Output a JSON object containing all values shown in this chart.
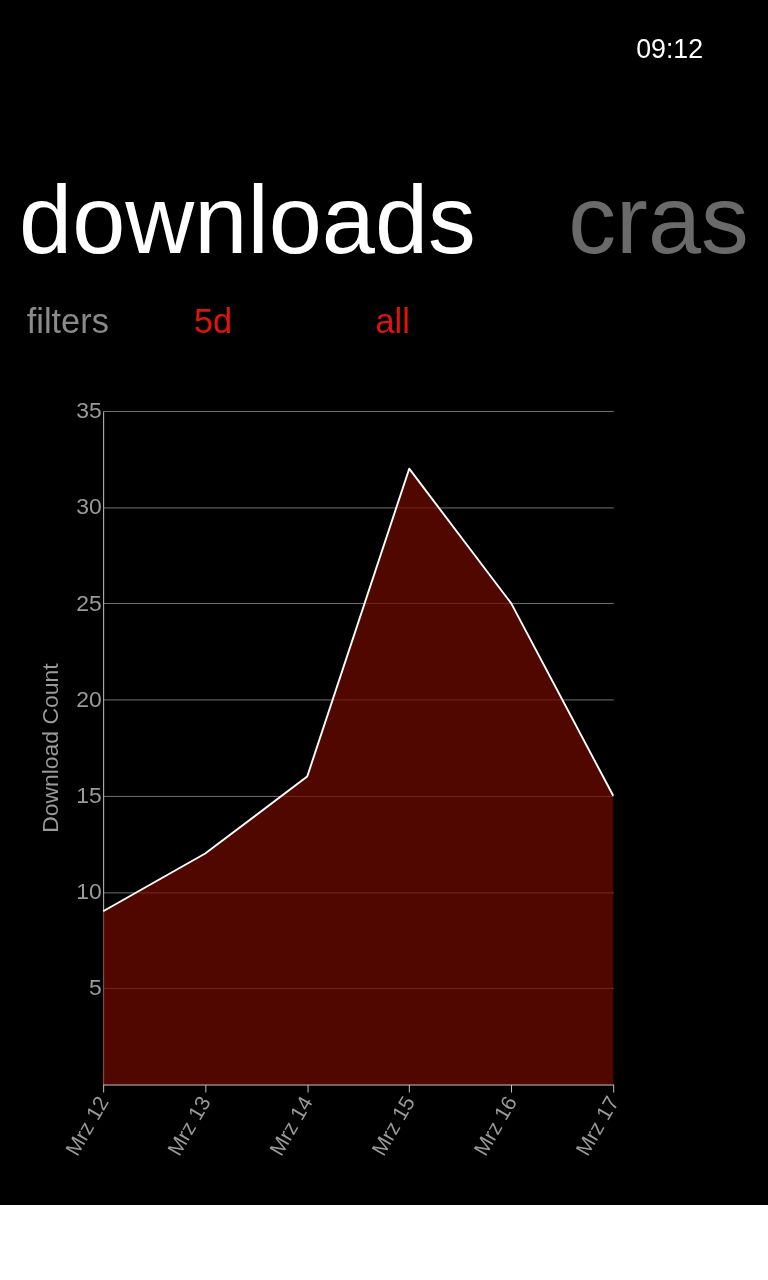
{
  "chart_data": {
    "type": "area",
    "title": "downloads",
    "ylabel": "Download Count",
    "categories": [
      "Mrz 12",
      "Mrz 13",
      "Mrz 14",
      "Mrz 15",
      "Mrz 16",
      "Mrz 17"
    ],
    "series": [
      {
        "color": "#700a00",
        "values": [
          9,
          12,
          16,
          32,
          25,
          15
        ]
      }
    ],
    "ylim": [
      0,
      35
    ],
    "yticks": [
      {
        "value": 0,
        "label": null
      },
      5,
      10,
      15,
      20,
      25,
      30,
      35
    ],
    "grid": "y",
    "annotations": [
      "09:12",
      "cras",
      "filters",
      "5d",
      "all"
    ]
  }
}
